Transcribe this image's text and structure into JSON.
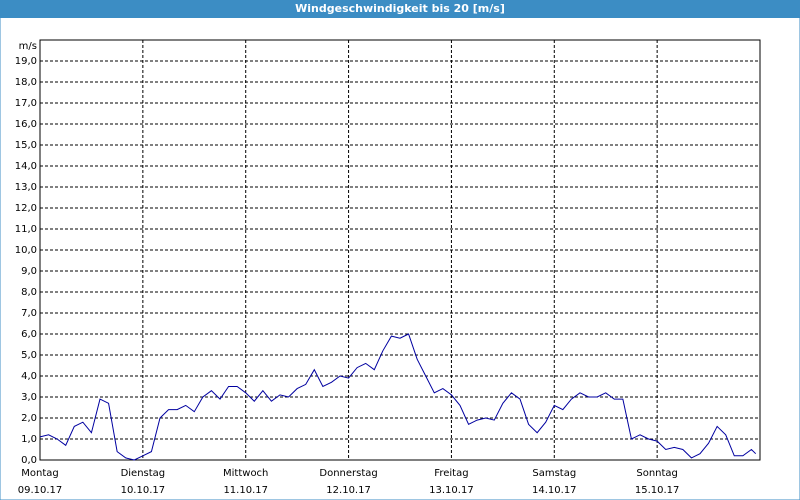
{
  "chart_data": {
    "type": "line",
    "title": "Windgeschwindigkeit bis 20 [m/s]",
    "y_label": "m/s",
    "x": [
      0,
      2,
      4,
      6,
      8,
      10,
      12,
      14,
      16,
      18,
      20,
      22,
      24,
      26,
      28,
      30,
      32,
      34,
      36,
      38,
      40,
      42,
      44,
      46,
      48,
      50,
      52,
      54,
      56,
      58,
      60,
      62,
      64,
      66,
      68,
      70,
      72,
      74,
      76,
      78,
      80,
      82,
      84,
      86,
      88,
      90,
      92,
      94,
      96,
      98,
      100,
      102,
      104,
      106,
      108,
      110,
      112,
      114,
      116,
      118,
      120,
      122,
      124,
      126,
      128,
      130,
      132,
      134,
      136,
      138,
      140,
      142,
      144,
      146,
      148,
      150,
      152,
      154,
      156,
      158,
      160,
      162,
      164,
      166,
      167
    ],
    "series": [
      {
        "name": "Windgeschwindigkeit",
        "color": "#0000a0",
        "values": [
          1.1,
          1.2,
          1.0,
          0.7,
          1.6,
          1.8,
          1.3,
          2.9,
          2.7,
          0.4,
          0.1,
          0.0,
          0.2,
          0.4,
          2.0,
          2.4,
          2.4,
          2.6,
          2.3,
          3.0,
          3.3,
          2.9,
          3.5,
          3.5,
          3.2,
          2.8,
          3.3,
          2.8,
          3.1,
          3.0,
          3.4,
          3.6,
          4.3,
          3.5,
          3.7,
          4.0,
          3.9,
          4.4,
          4.6,
          4.3,
          5.2,
          5.9,
          5.8,
          6.0,
          4.8,
          4.0,
          3.2,
          3.4,
          3.1,
          2.6,
          1.7,
          1.9,
          2.0,
          1.9,
          2.7,
          3.2,
          2.9,
          1.7,
          1.3,
          1.8,
          2.6,
          2.4,
          2.9,
          3.2,
          3.0,
          3.0,
          3.2,
          2.9,
          2.9,
          1.0,
          1.2,
          1.0,
          0.9,
          0.5,
          0.6,
          0.5,
          0.1,
          0.3,
          0.8,
          1.6,
          1.2,
          0.2,
          0.2,
          0.5,
          0.3
        ]
      }
    ],
    "xlim": [
      0,
      168
    ],
    "xticks": [
      {
        "value": 0,
        "label": "Montag",
        "date": "09.10.17"
      },
      {
        "value": 24,
        "label": "Dienstag",
        "date": "10.10.17"
      },
      {
        "value": 48,
        "label": "Mittwoch",
        "date": "11.10.17"
      },
      {
        "value": 72,
        "label": "Donnerstag",
        "date": "12.10.17"
      },
      {
        "value": 96,
        "label": "Freitag",
        "date": "13.10.17"
      },
      {
        "value": 120,
        "label": "Samstag",
        "date": "14.10.17"
      },
      {
        "value": 144,
        "label": "Sonntag",
        "date": "15.10.17"
      }
    ],
    "ylim": [
      0,
      20
    ],
    "yticks": [
      {
        "value": 0,
        "label": "0,0"
      },
      {
        "value": 1,
        "label": "1,0"
      },
      {
        "value": 2,
        "label": "2,0"
      },
      {
        "value": 3,
        "label": "3,0"
      },
      {
        "value": 4,
        "label": "4,0"
      },
      {
        "value": 5,
        "label": "5,0"
      },
      {
        "value": 6,
        "label": "6,0"
      },
      {
        "value": 7,
        "label": "7,0"
      },
      {
        "value": 8,
        "label": "8,0"
      },
      {
        "value": 9,
        "label": "9,0"
      },
      {
        "value": 10,
        "label": "10,0"
      },
      {
        "value": 11,
        "label": "11,0"
      },
      {
        "value": 12,
        "label": "12,0"
      },
      {
        "value": 13,
        "label": "13,0"
      },
      {
        "value": 14,
        "label": "14,0"
      },
      {
        "value": 15,
        "label": "15,0"
      },
      {
        "value": 16,
        "label": "16,0"
      },
      {
        "value": 17,
        "label": "17,0"
      },
      {
        "value": 18,
        "label": "18,0"
      },
      {
        "value": 19,
        "label": "19,0"
      }
    ],
    "grid": true
  }
}
